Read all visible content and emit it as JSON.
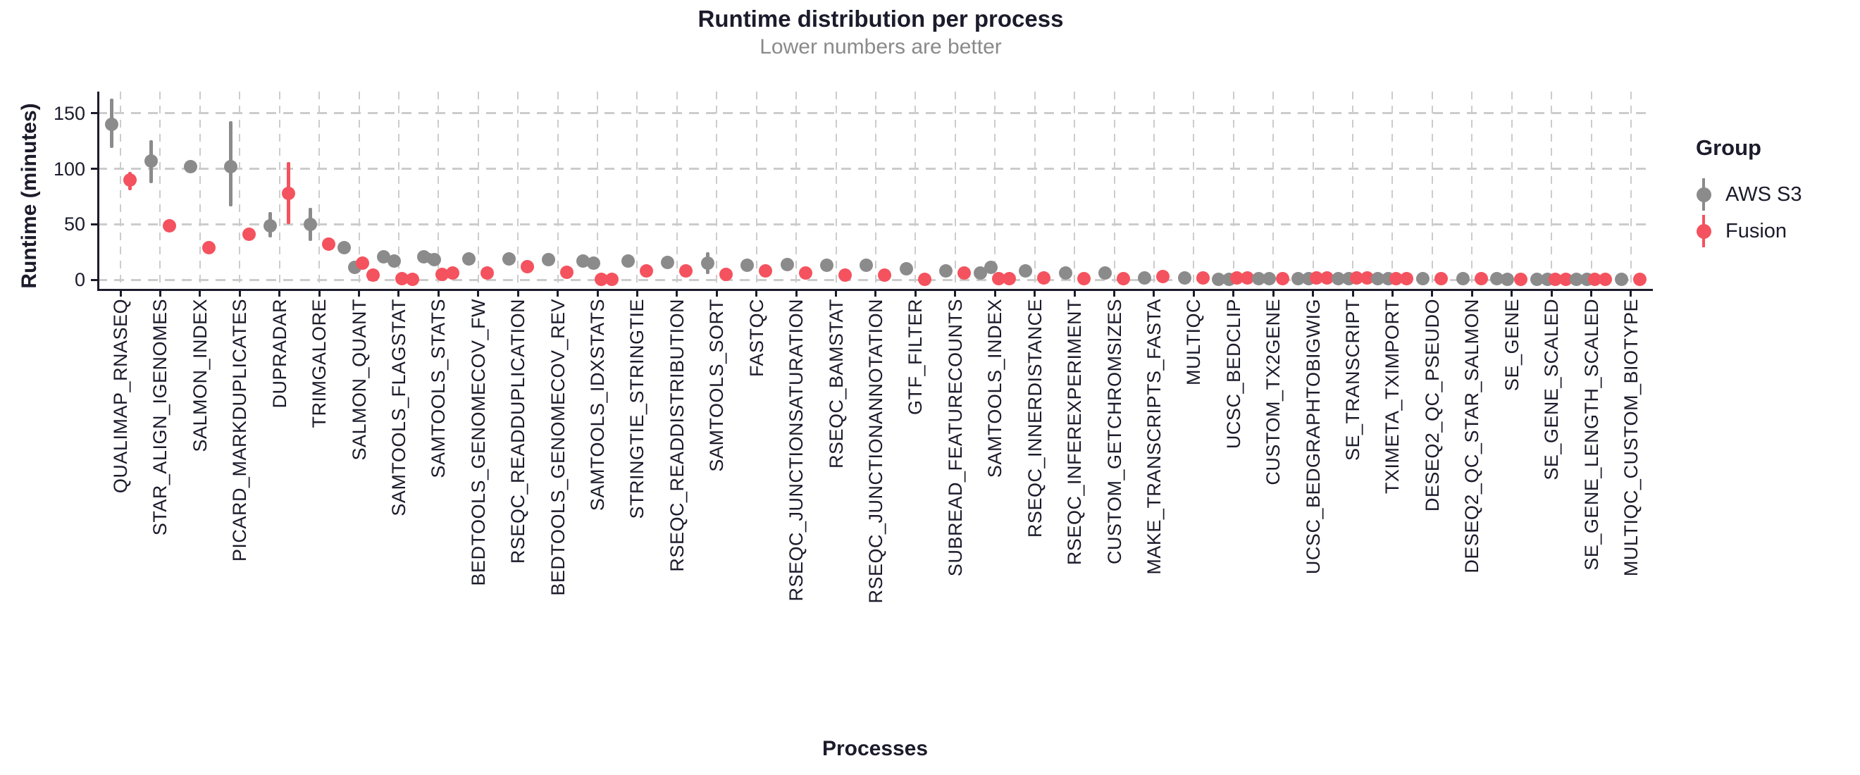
{
  "page": {
    "title": "Runtime distribution per process",
    "subtitle": "Lower numbers are better"
  },
  "chart_data": {
    "type": "pointrange-scatter",
    "title": "Runtime distribution per process",
    "subtitle": "Lower numbers are better",
    "xlabel": "Processes",
    "ylabel": "Runtime (minutes)",
    "yticks": [
      0,
      50,
      100,
      150
    ],
    "ylim": [
      -5,
      170
    ],
    "grid": "dashed-major-x-and-y",
    "legend": {
      "title": "Group",
      "position": "right",
      "entries": [
        {
          "id": "aws_s3",
          "label": "AWS S3",
          "color": "#8B8B8B"
        },
        {
          "id": "fusion",
          "label": "Fusion",
          "color": "#F4525E"
        }
      ]
    },
    "colors": {
      "aws_s3": "#8B8B8B",
      "fusion": "#F4525E",
      "grid": "#CCCCCC",
      "axis": "#1B1B2B",
      "title_text": "#1B1B2B",
      "subtitle_text": "#8A8A8A"
    },
    "units": "minutes",
    "processes": [
      {
        "name": "QUALIMAP_RNASEQ",
        "aws_s3": [
          140
        ],
        "aws_s3_range": [
          119,
          163
        ],
        "fusion": [
          90
        ],
        "fusion_range": [
          81,
          97
        ]
      },
      {
        "name": "STAR_ALIGN_IGENOMES",
        "aws_s3": [
          107
        ],
        "aws_s3_range": [
          87,
          126
        ],
        "fusion": [
          49
        ],
        "fusion_range": null
      },
      {
        "name": "SALMON_INDEX",
        "aws_s3": [
          102
        ],
        "aws_s3_range": null,
        "fusion": [
          29
        ],
        "fusion_range": null
      },
      {
        "name": "PICARD_MARKDUPLICATES",
        "aws_s3": [
          102
        ],
        "aws_s3_range": [
          66,
          143
        ],
        "fusion": [
          41
        ],
        "fusion_range": null
      },
      {
        "name": "DUPRADAR",
        "aws_s3": [
          49
        ],
        "aws_s3_range": [
          38,
          61
        ],
        "fusion": [
          78
        ],
        "fusion_range": [
          50,
          106
        ]
      },
      {
        "name": "TRIMGALORE",
        "aws_s3": [
          50
        ],
        "aws_s3_range": [
          35,
          65
        ],
        "fusion": [
          32
        ],
        "fusion_range": null
      },
      {
        "name": "SALMON_QUANT",
        "aws_s3": [
          29,
          11
        ],
        "aws_s3_range": null,
        "fusion": [
          15,
          4
        ],
        "fusion_range": null
      },
      {
        "name": "SAMTOOLS_FLAGSTAT",
        "aws_s3": [
          21,
          17
        ],
        "aws_s3_range": null,
        "fusion": [
          1,
          0.5
        ],
        "fusion_range": null
      },
      {
        "name": "SAMTOOLS_STATS",
        "aws_s3": [
          21,
          18
        ],
        "aws_s3_range": [
          15,
          24
        ],
        "fusion": [
          5,
          6
        ],
        "fusion_range": null
      },
      {
        "name": "BEDTOOLS_GENOMECOV_FW",
        "aws_s3": [
          19
        ],
        "aws_s3_range": null,
        "fusion": [
          6
        ],
        "fusion_range": null
      },
      {
        "name": "RSEQC_READDUPLICATION",
        "aws_s3": [
          19
        ],
        "aws_s3_range": null,
        "fusion": [
          12
        ],
        "fusion_range": null
      },
      {
        "name": "BEDTOOLS_GENOMECOV_REV",
        "aws_s3": [
          18
        ],
        "aws_s3_range": null,
        "fusion": [
          7
        ],
        "fusion_range": null
      },
      {
        "name": "SAMTOOLS_IDXSTATS",
        "aws_s3": [
          17,
          15
        ],
        "aws_s3_range": null,
        "fusion": [
          0.5,
          0.5
        ],
        "fusion_range": null
      },
      {
        "name": "STRINGTIE_STRINGTIE",
        "aws_s3": [
          17
        ],
        "aws_s3_range": null,
        "fusion": [
          8
        ],
        "fusion_range": null
      },
      {
        "name": "RSEQC_READDISTRIBUTION",
        "aws_s3": [
          16
        ],
        "aws_s3_range": null,
        "fusion": [
          8
        ],
        "fusion_range": null
      },
      {
        "name": "SAMTOOLS_SORT",
        "aws_s3": [
          15
        ],
        "aws_s3_range": [
          5,
          25
        ],
        "fusion": [
          5
        ],
        "fusion_range": null
      },
      {
        "name": "FASTQC",
        "aws_s3": [
          13.5
        ],
        "aws_s3_range": null,
        "fusion": [
          8
        ],
        "fusion_range": null
      },
      {
        "name": "RSEQC_JUNCTIONSATURATION",
        "aws_s3": [
          14
        ],
        "aws_s3_range": null,
        "fusion": [
          6
        ],
        "fusion_range": null
      },
      {
        "name": "RSEQC_BAMSTAT",
        "aws_s3": [
          13
        ],
        "aws_s3_range": null,
        "fusion": [
          4
        ],
        "fusion_range": null
      },
      {
        "name": "RSEQC_JUNCTIONANNOTATION",
        "aws_s3": [
          13
        ],
        "aws_s3_range": null,
        "fusion": [
          4
        ],
        "fusion_range": null
      },
      {
        "name": "GTF_FILTER",
        "aws_s3": [
          10
        ],
        "aws_s3_range": null,
        "fusion": [
          0.5
        ],
        "fusion_range": null
      },
      {
        "name": "SUBREAD_FEATURECOUNTS",
        "aws_s3": [
          8
        ],
        "aws_s3_range": null,
        "fusion": [
          6
        ],
        "fusion_range": null
      },
      {
        "name": "SAMTOOLS_INDEX",
        "aws_s3": [
          6,
          11
        ],
        "aws_s3_range": null,
        "fusion": [
          1,
          1
        ],
        "fusion_range": null
      },
      {
        "name": "RSEQC_INNERDISTANCE",
        "aws_s3": [
          8
        ],
        "aws_s3_range": null,
        "fusion": [
          1.5
        ],
        "fusion_range": null
      },
      {
        "name": "RSEQC_INFEREXPERIMENT",
        "aws_s3": [
          6
        ],
        "aws_s3_range": null,
        "fusion": [
          1
        ],
        "fusion_range": null
      },
      {
        "name": "CUSTOM_GETCHROMSIZES",
        "aws_s3": [
          6
        ],
        "aws_s3_range": null,
        "fusion": [
          1
        ],
        "fusion_range": null
      },
      {
        "name": "MAKE_TRANSCRIPTS_FASTA",
        "aws_s3": [
          2
        ],
        "aws_s3_range": null,
        "fusion": [
          3
        ],
        "fusion_range": null
      },
      {
        "name": "MULTIQC",
        "aws_s3": [
          1.5
        ],
        "aws_s3_range": null,
        "fusion": [
          2
        ],
        "fusion_range": null
      },
      {
        "name": "UCSC_BEDCLIP",
        "aws_s3": [
          0.5,
          0.5
        ],
        "aws_s3_range": null,
        "fusion": [
          1.5,
          1.5
        ],
        "fusion_range": null
      },
      {
        "name": "CUSTOM_TX2GENE",
        "aws_s3": [
          1,
          1
        ],
        "aws_s3_range": null,
        "fusion": [
          1
        ],
        "fusion_range": null
      },
      {
        "name": "UCSC_BEDGRAPHTOBIGWIG",
        "aws_s3": [
          1,
          1
        ],
        "aws_s3_range": null,
        "fusion": [
          1.5,
          1.5
        ],
        "fusion_range": null
      },
      {
        "name": "SE_TRANSCRIPT",
        "aws_s3": [
          1,
          1
        ],
        "aws_s3_range": null,
        "fusion": [
          1.5,
          1.5
        ],
        "fusion_range": null
      },
      {
        "name": "TXIMETA_TXIMPORT",
        "aws_s3": [
          1,
          1
        ],
        "aws_s3_range": null,
        "fusion": [
          1.2,
          1.2
        ],
        "fusion_range": null
      },
      {
        "name": "DESEQ2_QC_PSEUDO",
        "aws_s3": [
          1
        ],
        "aws_s3_range": null,
        "fusion": [
          1.2
        ],
        "fusion_range": null
      },
      {
        "name": "DESEQ2_QC_STAR_SALMON",
        "aws_s3": [
          1
        ],
        "aws_s3_range": null,
        "fusion": [
          1.2
        ],
        "fusion_range": null
      },
      {
        "name": "SE_GENE",
        "aws_s3": [
          1,
          0.8
        ],
        "aws_s3_range": null,
        "fusion": [
          0.8
        ],
        "fusion_range": null
      },
      {
        "name": "SE_GENE_SCALED",
        "aws_s3": [
          0.5,
          0.5
        ],
        "aws_s3_range": null,
        "fusion": [
          0.5,
          0.5
        ],
        "fusion_range": null
      },
      {
        "name": "SE_GENE_LENGTH_SCALED",
        "aws_s3": [
          0.5,
          0.5
        ],
        "aws_s3_range": null,
        "fusion": [
          0.5,
          0.5
        ],
        "fusion_range": null
      },
      {
        "name": "MULTIQC_CUSTOM_BIOTYPE",
        "aws_s3": [
          0.5
        ],
        "aws_s3_range": null,
        "fusion": [
          0.5
        ],
        "fusion_range": null
      }
    ]
  }
}
